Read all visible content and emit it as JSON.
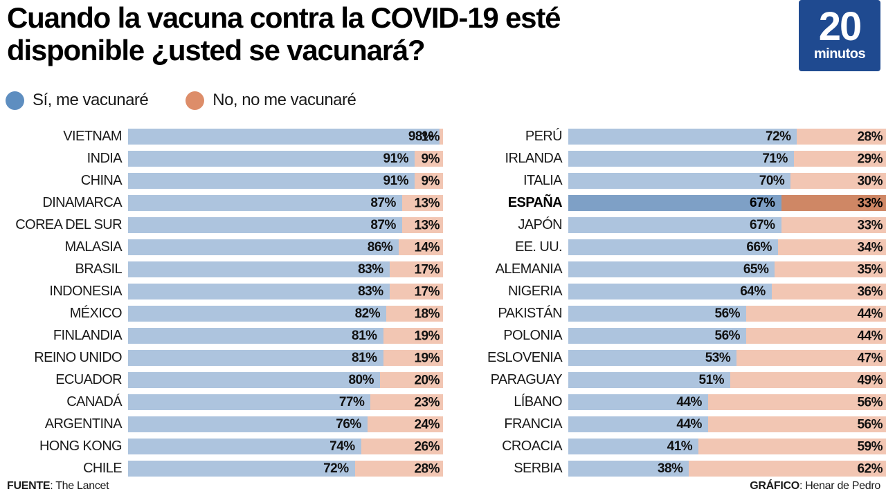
{
  "title_lines": [
    "Cuando la vacuna contra la COVID-19 esté",
    "disponible ¿usted se vacunará?"
  ],
  "logo": {
    "number": "20",
    "word": "minutos"
  },
  "legend": [
    {
      "label": "Sí, me vacunaré",
      "color": "#5E8EC0"
    },
    {
      "label": "No, no me vacunaré",
      "color": "#DD8D69"
    }
  ],
  "colors": {
    "yes": "#ADC4DE",
    "no": "#F2C6B3",
    "yes_highlight": "#7EA0C6",
    "no_highlight": "#CF8765",
    "logo_bg": "#1F4A90",
    "value_text": "#111111"
  },
  "chart_data": {
    "type": "bar",
    "subtype": "stacked-horizontal-100pct",
    "title": "Cuando la vacuna contra la COVID-19 esté disponible ¿usted se vacunará?",
    "series": [
      "Sí, me vacunaré",
      "No, no me vacunaré"
    ],
    "unit": "%",
    "highlight": "ESPAÑA",
    "columns": [
      {
        "rows": [
          {
            "country": "VIETNAM",
            "yes": 98,
            "no": 1
          },
          {
            "country": "INDIA",
            "yes": 91,
            "no": 9
          },
          {
            "country": "CHINA",
            "yes": 91,
            "no": 9
          },
          {
            "country": "DINAMARCA",
            "yes": 87,
            "no": 13
          },
          {
            "country": "COREA DEL SUR",
            "yes": 87,
            "no": 13
          },
          {
            "country": "MALASIA",
            "yes": 86,
            "no": 14
          },
          {
            "country": "BRASIL",
            "yes": 83,
            "no": 17
          },
          {
            "country": "INDONESIA",
            "yes": 83,
            "no": 17
          },
          {
            "country": "MÉXICO",
            "yes": 82,
            "no": 18
          },
          {
            "country": "FINLANDIA",
            "yes": 81,
            "no": 19
          },
          {
            "country": "REINO UNIDO",
            "yes": 81,
            "no": 19
          },
          {
            "country": "ECUADOR",
            "yes": 80,
            "no": 20
          },
          {
            "country": "CANADÁ",
            "yes": 77,
            "no": 23
          },
          {
            "country": "ARGENTINA",
            "yes": 76,
            "no": 24
          },
          {
            "country": "HONG KONG",
            "yes": 74,
            "no": 26
          },
          {
            "country": "CHILE",
            "yes": 72,
            "no": 28
          }
        ]
      },
      {
        "rows": [
          {
            "country": "PERÚ",
            "yes": 72,
            "no": 28
          },
          {
            "country": "IRLANDA",
            "yes": 71,
            "no": 29
          },
          {
            "country": "ITALIA",
            "yes": 70,
            "no": 30
          },
          {
            "country": "ESPAÑA",
            "yes": 67,
            "no": 33
          },
          {
            "country": "JAPÓN",
            "yes": 67,
            "no": 33
          },
          {
            "country": "EE. UU.",
            "yes": 66,
            "no": 34
          },
          {
            "country": "ALEMANIA",
            "yes": 65,
            "no": 35
          },
          {
            "country": "NIGERIA",
            "yes": 64,
            "no": 36
          },
          {
            "country": "PAKISTÁN",
            "yes": 56,
            "no": 44
          },
          {
            "country": "POLONIA",
            "yes": 56,
            "no": 44
          },
          {
            "country": "ESLOVENIA",
            "yes": 53,
            "no": 47
          },
          {
            "country": "PARAGUAY",
            "yes": 51,
            "no": 49
          },
          {
            "country": "LÍBANO",
            "yes": 44,
            "no": 56
          },
          {
            "country": "FRANCIA",
            "yes": 44,
            "no": 56
          },
          {
            "country": "CROACIA",
            "yes": 41,
            "no": 59
          },
          {
            "country": "SERBIA",
            "yes": 38,
            "no": 62
          }
        ]
      }
    ]
  },
  "footer": {
    "source_label": "FUENTE",
    "source_rest": ": The Lancet",
    "credit_label": "GRÁFICO",
    "credit_rest": ": Henar de Pedro"
  }
}
